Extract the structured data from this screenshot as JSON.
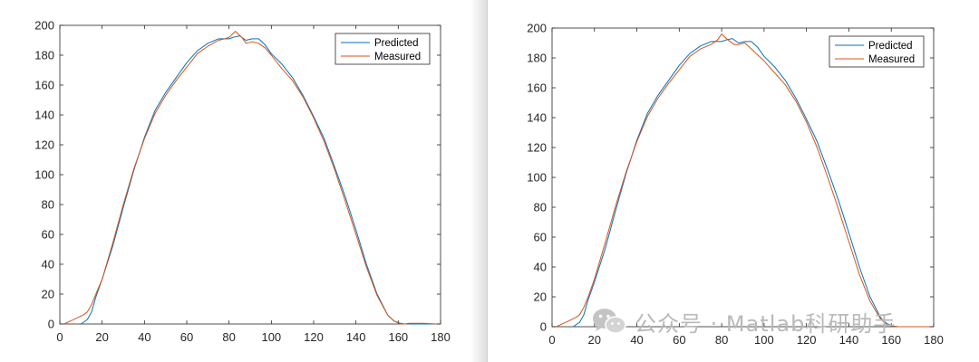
{
  "colors": {
    "predicted": "#0072BD",
    "measured": "#D95319",
    "axis": "#262626",
    "watermark": "#b9b9b9"
  },
  "watermark": {
    "text": "公众号 · Matlab科研助手",
    "icon": "wechat-icon"
  },
  "chart_data": [
    {
      "type": "line",
      "xlim": [
        0,
        180
      ],
      "ylim": [
        0,
        200
      ],
      "xticks": [
        0,
        20,
        40,
        60,
        80,
        100,
        120,
        140,
        160,
        180
      ],
      "yticks": [
        0,
        20,
        40,
        60,
        80,
        100,
        120,
        140,
        160,
        180,
        200
      ],
      "grid": false,
      "legend_position": "top-right",
      "series": [
        {
          "name": "Predicted",
          "color": "#0072BD",
          "x": [
            10,
            13,
            15,
            17,
            20,
            25,
            30,
            35,
            40,
            45,
            50,
            55,
            60,
            65,
            70,
            75,
            80,
            82,
            85,
            88,
            91,
            94,
            97,
            100,
            105,
            110,
            115,
            120,
            125,
            130,
            135,
            140,
            145,
            150,
            155,
            158,
            161,
            163,
            166,
            170,
            175
          ],
          "y": [
            0,
            3,
            8,
            18,
            30,
            52,
            78,
            103,
            125,
            143,
            155,
            165,
            175,
            183,
            188,
            191,
            191,
            192,
            193,
            190,
            191,
            191,
            187,
            181,
            174,
            165,
            153,
            139,
            124,
            105,
            85,
            63,
            40,
            20,
            6,
            2,
            0.5,
            0,
            0,
            0,
            0
          ]
        },
        {
          "name": "Measured",
          "color": "#D95319",
          "x": [
            2,
            5,
            8,
            11,
            13,
            15,
            17,
            20,
            25,
            30,
            35,
            40,
            45,
            50,
            55,
            60,
            65,
            70,
            75,
            78,
            80,
            83,
            86,
            88,
            91,
            94,
            97,
            100,
            105,
            110,
            115,
            120,
            125,
            130,
            135,
            140,
            145,
            150,
            155,
            158,
            161,
            163,
            165,
            168,
            172,
            178
          ],
          "y": [
            0,
            2,
            4,
            6,
            8,
            13,
            20,
            30,
            54,
            80,
            104,
            124,
            141,
            153,
            163,
            172,
            181,
            186,
            190,
            191,
            192,
            196,
            192,
            188,
            189,
            188,
            185,
            180,
            171,
            163,
            152,
            138,
            122,
            103,
            82,
            60,
            38,
            19,
            6,
            2,
            0,
            0,
            0.5,
            0.5,
            0.5,
            0
          ]
        }
      ]
    },
    {
      "type": "line",
      "xlim": [
        0,
        180
      ],
      "ylim": [
        0,
        200
      ],
      "xticks": [
        0,
        20,
        40,
        60,
        80,
        100,
        120,
        140,
        160,
        180
      ],
      "yticks": [
        0,
        20,
        40,
        60,
        80,
        100,
        120,
        140,
        160,
        180,
        200
      ],
      "grid": false,
      "legend_position": "top-right",
      "series": [
        {
          "name": "Predicted",
          "color": "#0072BD",
          "x": [
            10,
            13,
            15,
            17,
            20,
            25,
            30,
            35,
            40,
            45,
            50,
            55,
            60,
            65,
            70,
            75,
            80,
            82,
            85,
            88,
            91,
            94,
            97,
            100,
            105,
            110,
            115,
            120,
            125,
            130,
            135,
            140,
            145,
            150,
            155,
            158,
            161,
            163,
            166,
            170,
            175
          ],
          "y": [
            0,
            3,
            8,
            18,
            30,
            52,
            78,
            103,
            125,
            143,
            155,
            165,
            175,
            183,
            188,
            191,
            191,
            192,
            193,
            190,
            191,
            191,
            187,
            181,
            174,
            165,
            153,
            139,
            124,
            105,
            85,
            63,
            40,
            20,
            6,
            2,
            0.5,
            0,
            0,
            0,
            0
          ]
        },
        {
          "name": "Measured",
          "color": "#D95319",
          "x": [
            2,
            5,
            8,
            11,
            13,
            15,
            17,
            20,
            25,
            30,
            35,
            40,
            45,
            50,
            55,
            60,
            65,
            70,
            75,
            78,
            80,
            83,
            86,
            88,
            91,
            94,
            97,
            100,
            105,
            110,
            115,
            120,
            125,
            130,
            135,
            140,
            145,
            150,
            155,
            158,
            161,
            163,
            166,
            170,
            178
          ],
          "y": [
            0,
            2,
            4,
            6,
            8,
            13,
            20,
            32,
            56,
            81,
            104,
            124,
            141,
            153,
            163,
            172,
            181,
            186,
            189,
            192,
            196,
            192,
            189,
            189,
            190,
            186,
            182,
            178,
            170,
            162,
            151,
            137,
            120,
            100,
            79,
            57,
            35,
            17,
            5,
            1.5,
            0.5,
            0,
            0,
            0,
            0
          ]
        }
      ]
    }
  ]
}
